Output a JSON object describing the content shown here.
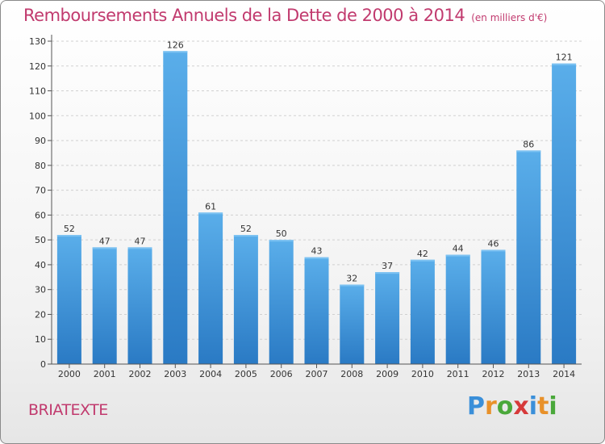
{
  "header": {
    "title": "Remboursements Annuels de la Dette de 2000 à 2014",
    "unit": "(en milliers d'€)"
  },
  "footer": {
    "commune": "BRIATEXTE",
    "brand_letters": [
      "P",
      "r",
      "o",
      "x",
      "i",
      "t",
      "i"
    ],
    "brand_colors": [
      "#3a8fd9",
      "#e8912a",
      "#4aa83a",
      "#d63a3a",
      "#3a8fd9",
      "#e8912a",
      "#4aa83a"
    ]
  },
  "colors": {
    "bar_top": "#5aaeea",
    "bar_bottom": "#2a7ac4",
    "title": "#c13a6e"
  },
  "chart_data": {
    "type": "bar",
    "categories": [
      "2000",
      "2001",
      "2002",
      "2003",
      "2004",
      "2005",
      "2006",
      "2007",
      "2008",
      "2009",
      "2010",
      "2011",
      "2012",
      "2013",
      "2014"
    ],
    "values": [
      52,
      47,
      47,
      126,
      61,
      52,
      50,
      43,
      32,
      37,
      42,
      44,
      46,
      86,
      121
    ],
    "ylim": [
      0,
      130
    ],
    "yticks": [
      0,
      10,
      20,
      30,
      40,
      50,
      60,
      70,
      80,
      90,
      100,
      110,
      120,
      130
    ],
    "grid": true
  }
}
